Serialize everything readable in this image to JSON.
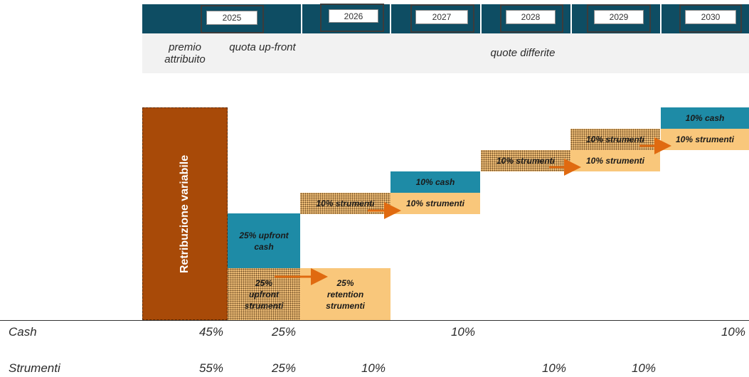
{
  "header": {
    "years": [
      "2025",
      "2026",
      "2027",
      "2028",
      "2029",
      "2030"
    ],
    "bar_color": "#0e4d63"
  },
  "subheader": {
    "premio_attribuito": "premio attribuito",
    "quota_upfront": "quota up-front",
    "quote_differite": "quote differite"
  },
  "blocks": {
    "retribuzione_variabile": "Retribuzione variabile",
    "upfront_cash": "25% upfront cash",
    "upfront_strumenti": "25% upfront strumenti",
    "retention_strumenti": "25% retention strumenti",
    "strumenti_2026": "10% strumenti",
    "strumenti_2027": "10% strumenti",
    "cash_2027": "10% cash",
    "strumenti_2028": "10% strumenti",
    "strumenti_2029a": "10% strumenti",
    "strumenti_2029b": "10% strumenti",
    "cash_2030": "10% cash",
    "strumenti_2030": "10% strumenti"
  },
  "table": {
    "cash_label": "Cash",
    "strumenti_label": "Strumenti",
    "cash_values": [
      "45%",
      "25%",
      "10%",
      "10%"
    ],
    "strumenti_values": [
      "55%",
      "25%",
      "10%",
      "10%",
      "10%"
    ]
  },
  "colors": {
    "teal": "#1e8ba6",
    "sand": "#f9c77b",
    "rust": "#a84a08",
    "arrow": "#e06a10"
  }
}
